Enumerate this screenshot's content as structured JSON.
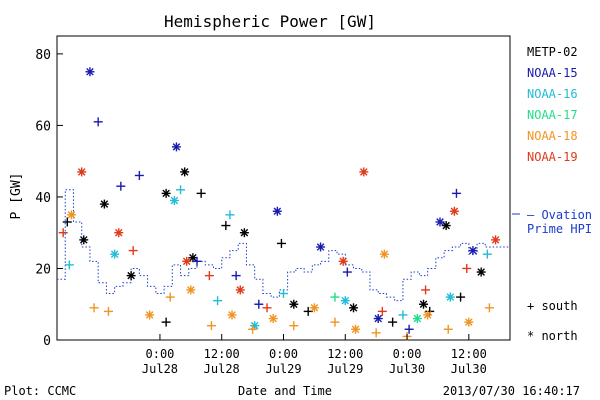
{
  "chart_data": {
    "type": "scatter",
    "title": "Hemispheric Power [GW]",
    "ylabel": "P [GW]",
    "xlabel": "Date and Time",
    "ylim": [
      0,
      85
    ],
    "xlim": [
      -5,
      17
    ],
    "y_ticks": [
      0,
      20,
      40,
      60,
      80
    ],
    "x_ticks": [
      {
        "x": 0,
        "line1": "0:00",
        "line2": "Jul28"
      },
      {
        "x": 3,
        "line1": "12:00",
        "line2": "Jul28"
      },
      {
        "x": 6,
        "line1": "0:00",
        "line2": "Jul29"
      },
      {
        "x": 9,
        "line1": "12:00",
        "line2": "Jul29"
      },
      {
        "x": 12,
        "line1": "0:00",
        "line2": "Jul30"
      },
      {
        "x": 15,
        "line1": "12:00",
        "line2": "Jul30"
      }
    ],
    "legend": [
      {
        "name": "METP-02",
        "color": "#000000"
      },
      {
        "name": "NOAA-15",
        "color": "#1a1ab0"
      },
      {
        "name": "NOAA-16",
        "color": "#22bcd8"
      },
      {
        "name": "NOAA-17",
        "color": "#22dd88"
      },
      {
        "name": "NOAA-18",
        "color": "#f09422"
      },
      {
        "name": "NOAA-19",
        "color": "#e03a1a"
      }
    ],
    "ovation_label": [
      "– Ovation",
      "Prime HPI"
    ],
    "ovation_color": "#1a3ccf",
    "marker_legend": [
      {
        "symbol": "+",
        "label": "south"
      },
      {
        "symbol": "*",
        "label": "north"
      }
    ],
    "ovation": [
      [
        -5,
        17
      ],
      [
        -4.6,
        42
      ],
      [
        -4.2,
        33
      ],
      [
        -3.8,
        26
      ],
      [
        -3.4,
        22
      ],
      [
        -3.0,
        16
      ],
      [
        -2.6,
        13
      ],
      [
        -2.2,
        15
      ],
      [
        -1.8,
        16
      ],
      [
        -1.4,
        20
      ],
      [
        -1.0,
        18
      ],
      [
        -0.6,
        15
      ],
      [
        -0.2,
        13
      ],
      [
        0.2,
        15
      ],
      [
        0.6,
        21
      ],
      [
        1.0,
        18
      ],
      [
        1.4,
        20
      ],
      [
        1.8,
        22
      ],
      [
        2.2,
        21
      ],
      [
        2.6,
        20
      ],
      [
        3.0,
        23
      ],
      [
        3.4,
        25
      ],
      [
        3.8,
        27
      ],
      [
        4.2,
        21
      ],
      [
        4.6,
        17
      ],
      [
        5.0,
        13
      ],
      [
        5.4,
        12
      ],
      [
        5.8,
        14
      ],
      [
        6.2,
        19
      ],
      [
        6.6,
        20
      ],
      [
        7.0,
        19
      ],
      [
        7.4,
        21
      ],
      [
        7.8,
        22
      ],
      [
        8.2,
        25
      ],
      [
        8.6,
        24
      ],
      [
        9.0,
        21
      ],
      [
        9.4,
        20
      ],
      [
        9.8,
        19
      ],
      [
        10.2,
        14
      ],
      [
        10.6,
        13
      ],
      [
        11.0,
        12
      ],
      [
        11.4,
        11
      ],
      [
        11.8,
        17
      ],
      [
        12.2,
        19
      ],
      [
        12.6,
        18
      ],
      [
        13.0,
        20
      ],
      [
        13.4,
        23
      ],
      [
        13.8,
        25
      ],
      [
        14.2,
        26
      ],
      [
        14.6,
        27
      ],
      [
        15.0,
        24
      ],
      [
        15.4,
        27
      ],
      [
        15.8,
        26
      ],
      [
        16.2,
        26
      ]
    ],
    "points": [
      {
        "sat": "METP-02",
        "marker": "+",
        "x": -4.5,
        "y": 33
      },
      {
        "sat": "METP-02",
        "marker": "*",
        "x": -3.7,
        "y": 28
      },
      {
        "sat": "METP-02",
        "marker": "*",
        "x": -2.7,
        "y": 38
      },
      {
        "sat": "METP-02",
        "marker": "*",
        "x": -1.4,
        "y": 18
      },
      {
        "sat": "METP-02",
        "marker": "*",
        "x": 0.3,
        "y": 41
      },
      {
        "sat": "METP-02",
        "marker": "*",
        "x": 1.2,
        "y": 47
      },
      {
        "sat": "METP-02",
        "marker": "+",
        "x": 2.0,
        "y": 41
      },
      {
        "sat": "METP-02",
        "marker": "*",
        "x": 1.6,
        "y": 23
      },
      {
        "sat": "METP-02",
        "marker": "+",
        "x": 0.3,
        "y": 5
      },
      {
        "sat": "METP-02",
        "marker": "*",
        "x": 4.1,
        "y": 30
      },
      {
        "sat": "METP-02",
        "marker": "+",
        "x": 3.2,
        "y": 32
      },
      {
        "sat": "METP-02",
        "marker": "+",
        "x": 5.9,
        "y": 27
      },
      {
        "sat": "METP-02",
        "marker": "*",
        "x": 6.5,
        "y": 10
      },
      {
        "sat": "METP-02",
        "marker": "+",
        "x": 7.2,
        "y": 8
      },
      {
        "sat": "METP-02",
        "marker": "*",
        "x": 9.4,
        "y": 9
      },
      {
        "sat": "METP-02",
        "marker": "+",
        "x": 11.3,
        "y": 5
      },
      {
        "sat": "METP-02",
        "marker": "*",
        "x": 12.8,
        "y": 10
      },
      {
        "sat": "METP-02",
        "marker": "+",
        "x": 13.1,
        "y": 8
      },
      {
        "sat": "METP-02",
        "marker": "*",
        "x": 13.9,
        "y": 32
      },
      {
        "sat": "METP-02",
        "marker": "+",
        "x": 14.6,
        "y": 12
      },
      {
        "sat": "METP-02",
        "marker": "*",
        "x": 15.6,
        "y": 19
      },
      {
        "sat": "NOAA-15",
        "marker": "*",
        "x": -3.4,
        "y": 75
      },
      {
        "sat": "NOAA-15",
        "marker": "+",
        "x": -3.0,
        "y": 61
      },
      {
        "sat": "NOAA-15",
        "marker": "+",
        "x": -1.9,
        "y": 43
      },
      {
        "sat": "NOAA-15",
        "marker": "+",
        "x": -1.0,
        "y": 46
      },
      {
        "sat": "NOAA-15",
        "marker": "*",
        "x": 0.8,
        "y": 54
      },
      {
        "sat": "NOAA-15",
        "marker": "+",
        "x": 1.8,
        "y": 22
      },
      {
        "sat": "NOAA-15",
        "marker": "+",
        "x": 3.7,
        "y": 18
      },
      {
        "sat": "NOAA-15",
        "marker": "*",
        "x": 5.7,
        "y": 36
      },
      {
        "sat": "NOAA-15",
        "marker": "*",
        "x": 7.8,
        "y": 26
      },
      {
        "sat": "NOAA-15",
        "marker": "+",
        "x": 9.1,
        "y": 19
      },
      {
        "sat": "NOAA-15",
        "marker": "*",
        "x": 10.6,
        "y": 6
      },
      {
        "sat": "NOAA-15",
        "marker": "+",
        "x": 12.1,
        "y": 3
      },
      {
        "sat": "NOAA-15",
        "marker": "*",
        "x": 13.6,
        "y": 33
      },
      {
        "sat": "NOAA-15",
        "marker": "+",
        "x": 14.4,
        "y": 41
      },
      {
        "sat": "NOAA-15",
        "marker": "*",
        "x": 15.2,
        "y": 25
      },
      {
        "sat": "NOAA-15",
        "marker": "+",
        "x": 4.8,
        "y": 10
      },
      {
        "sat": "NOAA-16",
        "marker": "+",
        "x": -4.4,
        "y": 21
      },
      {
        "sat": "NOAA-16",
        "marker": "*",
        "x": -2.2,
        "y": 24
      },
      {
        "sat": "NOAA-16",
        "marker": "+",
        "x": 1.0,
        "y": 42
      },
      {
        "sat": "NOAA-16",
        "marker": "*",
        "x": 0.7,
        "y": 39
      },
      {
        "sat": "NOAA-16",
        "marker": "+",
        "x": 3.4,
        "y": 35
      },
      {
        "sat": "NOAA-16",
        "marker": "+",
        "x": 2.8,
        "y": 11
      },
      {
        "sat": "NOAA-16",
        "marker": "*",
        "x": 4.6,
        "y": 4
      },
      {
        "sat": "NOAA-16",
        "marker": "+",
        "x": 6.0,
        "y": 13
      },
      {
        "sat": "NOAA-16",
        "marker": "*",
        "x": 9.0,
        "y": 11
      },
      {
        "sat": "NOAA-16",
        "marker": "+",
        "x": 11.8,
        "y": 7
      },
      {
        "sat": "NOAA-16",
        "marker": "*",
        "x": 14.1,
        "y": 12
      },
      {
        "sat": "NOAA-16",
        "marker": "+",
        "x": 15.9,
        "y": 24
      },
      {
        "sat": "NOAA-17",
        "marker": "+",
        "x": 8.5,
        "y": 12
      },
      {
        "sat": "NOAA-17",
        "marker": "*",
        "x": 12.5,
        "y": 6
      },
      {
        "sat": "NOAA-18",
        "marker": "*",
        "x": -4.3,
        "y": 35
      },
      {
        "sat": "NOAA-18",
        "marker": "+",
        "x": -3.2,
        "y": 9
      },
      {
        "sat": "NOAA-18",
        "marker": "+",
        "x": -2.5,
        "y": 8
      },
      {
        "sat": "NOAA-18",
        "marker": "*",
        "x": -0.5,
        "y": 7
      },
      {
        "sat": "NOAA-18",
        "marker": "+",
        "x": 0.5,
        "y": 12
      },
      {
        "sat": "NOAA-18",
        "marker": "*",
        "x": 1.5,
        "y": 14
      },
      {
        "sat": "NOAA-18",
        "marker": "+",
        "x": 2.5,
        "y": 4
      },
      {
        "sat": "NOAA-18",
        "marker": "*",
        "x": 3.5,
        "y": 7
      },
      {
        "sat": "NOAA-18",
        "marker": "+",
        "x": 4.5,
        "y": 3
      },
      {
        "sat": "NOAA-18",
        "marker": "*",
        "x": 5.5,
        "y": 6
      },
      {
        "sat": "NOAA-18",
        "marker": "+",
        "x": 6.5,
        "y": 4
      },
      {
        "sat": "NOAA-18",
        "marker": "*",
        "x": 7.5,
        "y": 9
      },
      {
        "sat": "NOAA-18",
        "marker": "+",
        "x": 8.5,
        "y": 5
      },
      {
        "sat": "NOAA-18",
        "marker": "*",
        "x": 9.5,
        "y": 3
      },
      {
        "sat": "NOAA-18",
        "marker": "+",
        "x": 10.5,
        "y": 2
      },
      {
        "sat": "NOAA-18",
        "marker": "*",
        "x": 10.9,
        "y": 24
      },
      {
        "sat": "NOAA-18",
        "marker": "+",
        "x": 12.0,
        "y": 1
      },
      {
        "sat": "NOAA-18",
        "marker": "*",
        "x": 13.0,
        "y": 7
      },
      {
        "sat": "NOAA-18",
        "marker": "+",
        "x": 14.0,
        "y": 3
      },
      {
        "sat": "NOAA-18",
        "marker": "*",
        "x": 15.0,
        "y": 5
      },
      {
        "sat": "NOAA-18",
        "marker": "+",
        "x": 16.0,
        "y": 9
      },
      {
        "sat": "NOAA-19",
        "marker": "*",
        "x": -3.8,
        "y": 47
      },
      {
        "sat": "NOAA-19",
        "marker": "+",
        "x": -4.7,
        "y": 30
      },
      {
        "sat": "NOAA-19",
        "marker": "*",
        "x": -2.0,
        "y": 30
      },
      {
        "sat": "NOAA-19",
        "marker": "+",
        "x": -1.3,
        "y": 25
      },
      {
        "sat": "NOAA-19",
        "marker": "*",
        "x": 1.3,
        "y": 22
      },
      {
        "sat": "NOAA-19",
        "marker": "+",
        "x": 2.4,
        "y": 18
      },
      {
        "sat": "NOAA-19",
        "marker": "*",
        "x": 3.9,
        "y": 14
      },
      {
        "sat": "NOAA-19",
        "marker": "+",
        "x": 5.2,
        "y": 9
      },
      {
        "sat": "NOAA-19",
        "marker": "*",
        "x": 8.9,
        "y": 22
      },
      {
        "sat": "NOAA-19",
        "marker": "*",
        "x": 9.9,
        "y": 47
      },
      {
        "sat": "NOAA-19",
        "marker": "+",
        "x": 10.8,
        "y": 8
      },
      {
        "sat": "NOAA-19",
        "marker": "*",
        "x": 14.3,
        "y": 36
      },
      {
        "sat": "NOAA-19",
        "marker": "+",
        "x": 14.9,
        "y": 20
      },
      {
        "sat": "NOAA-19",
        "marker": "*",
        "x": 16.3,
        "y": 28
      },
      {
        "sat": "NOAA-19",
        "marker": "+",
        "x": 12.9,
        "y": 14
      }
    ]
  },
  "footer": {
    "plot_label": "Plot: CCMC",
    "timestamp": "2013/07/30 16:40:17"
  }
}
